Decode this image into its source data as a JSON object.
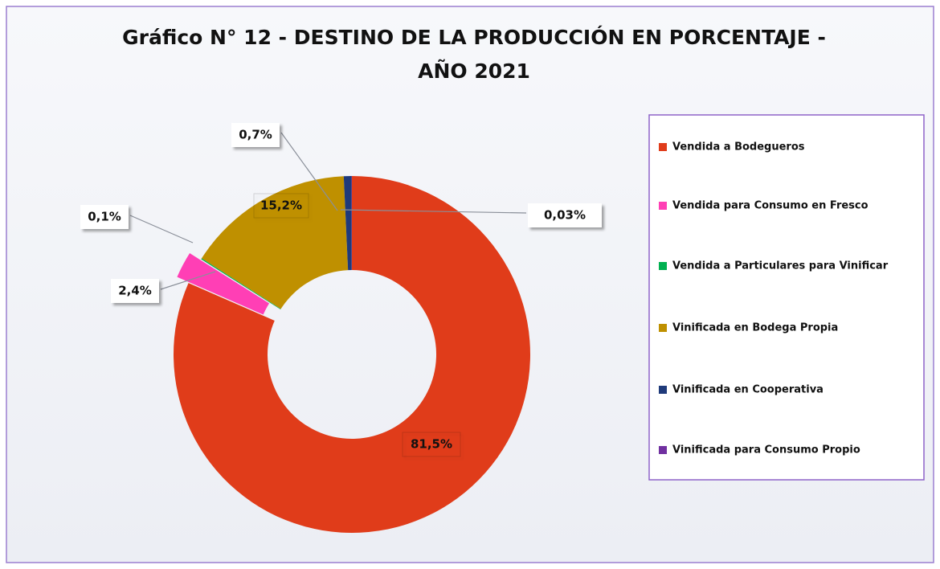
{
  "chart_data": {
    "type": "donut",
    "title": [
      "Gráfico N° 12 - DESTINO DE LA PRODUCCIÓN EN PORCENTAJE -",
      "AÑO 2021"
    ],
    "series": [
      {
        "name": "Vendida a Bodegueros",
        "color": "#e03c1a",
        "values": [
          81.5
        ],
        "value_labels": [
          "81,5%"
        ]
      },
      {
        "name": "Vendida para Consumo en Fresco",
        "color": "#ff3fb5",
        "values": [
          2.4
        ],
        "value_labels": [
          "2,4%"
        ]
      },
      {
        "name": "Vendida a Particulares para Vinificar",
        "color": "#00b050",
        "values": [
          0.1
        ],
        "value_labels": [
          "0,1%"
        ]
      },
      {
        "name": "Vinificada en Bodega Propia",
        "color": "#bf9000",
        "values": [
          15.2
        ],
        "value_labels": [
          "15,2%"
        ]
      },
      {
        "name": "Vinificada en Cooperativa",
        "color": "#1f3a7a",
        "values": [
          0.7
        ],
        "value_labels": [
          "0,7%"
        ]
      },
      {
        "name": "Vinificada para Consumo Propio",
        "color": "#7030a0",
        "values": [
          0.03
        ],
        "value_labels": [
          "0,03%"
        ]
      }
    ],
    "legend": "right"
  }
}
